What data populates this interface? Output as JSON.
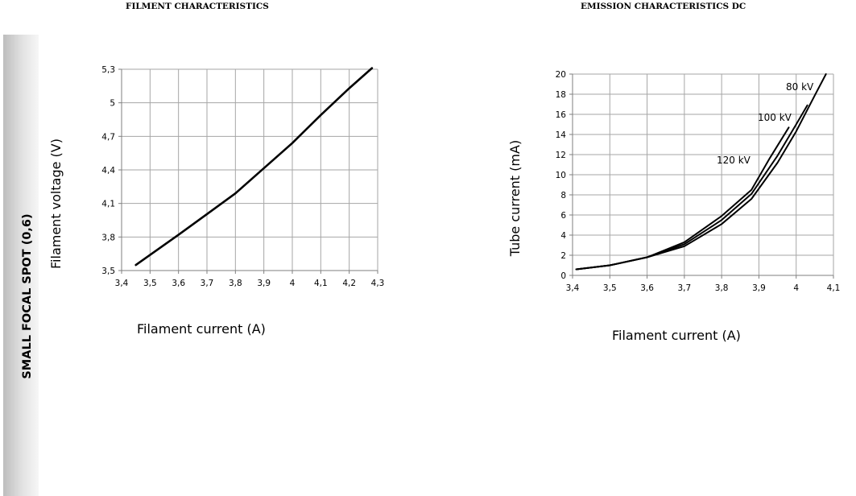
{
  "sidebar": {
    "label": "SMALL FOCAL SPOT (0,6)"
  },
  "chart_data": [
    {
      "type": "line",
      "title": "FILMENT CHARACTERISTICS",
      "xlabel": "Filament current (A)",
      "ylabel": "Filament voltage (V)",
      "xlim": [
        3.4,
        4.3
      ],
      "ylim": [
        3.5,
        5.3
      ],
      "x_ticks": [
        "3,4",
        "3,5",
        "3,6",
        "3,7",
        "3,8",
        "3,9",
        "4",
        "4,1",
        "4,2",
        "4,3"
      ],
      "y_ticks": [
        "3,5",
        "3,8",
        "4,1",
        "4,4",
        "4,7",
        "5",
        "5,3"
      ],
      "grid": true,
      "series": [
        {
          "x": [
            3.45,
            3.6,
            3.8,
            4.0,
            4.1,
            4.2,
            4.28
          ],
          "y": [
            3.55,
            3.82,
            4.19,
            4.64,
            4.89,
            5.13,
            5.31
          ]
        }
      ]
    },
    {
      "type": "line",
      "title": "EMISSION CHARACTERISTICS DC",
      "xlabel": "Filament current (A)",
      "ylabel": "Tube current (mA)",
      "xlim": [
        3.4,
        4.1
      ],
      "ylim": [
        0,
        20
      ],
      "x_ticks": [
        "3,4",
        "3,5",
        "3,6",
        "3,7",
        "3,8",
        "3,9",
        "4",
        "4,1"
      ],
      "y_ticks": [
        "0",
        "2",
        "4",
        "6",
        "8",
        "10",
        "12",
        "14",
        "16",
        "18",
        "20"
      ],
      "grid": true,
      "series": [
        {
          "name": "80 kV",
          "x": [
            3.41,
            3.5,
            3.6,
            3.7,
            3.8,
            3.88,
            3.95,
            4.0,
            4.05,
            4.08
          ],
          "y": [
            0.6,
            1.0,
            1.8,
            2.9,
            5.1,
            7.6,
            11.2,
            14.3,
            17.9,
            20.0
          ]
        },
        {
          "name": "100 kV",
          "x": [
            3.41,
            3.5,
            3.6,
            3.7,
            3.8,
            3.88,
            3.95,
            4.0,
            4.03
          ],
          "y": [
            0.6,
            1.0,
            1.8,
            3.1,
            5.5,
            8.1,
            11.9,
            15.0,
            16.9
          ]
        },
        {
          "name": "120 kV",
          "x": [
            3.41,
            3.5,
            3.6,
            3.7,
            3.8,
            3.88,
            3.93,
            3.98
          ],
          "y": [
            0.6,
            1.0,
            1.8,
            3.3,
            5.9,
            8.5,
            11.7,
            14.7
          ]
        }
      ]
    }
  ]
}
